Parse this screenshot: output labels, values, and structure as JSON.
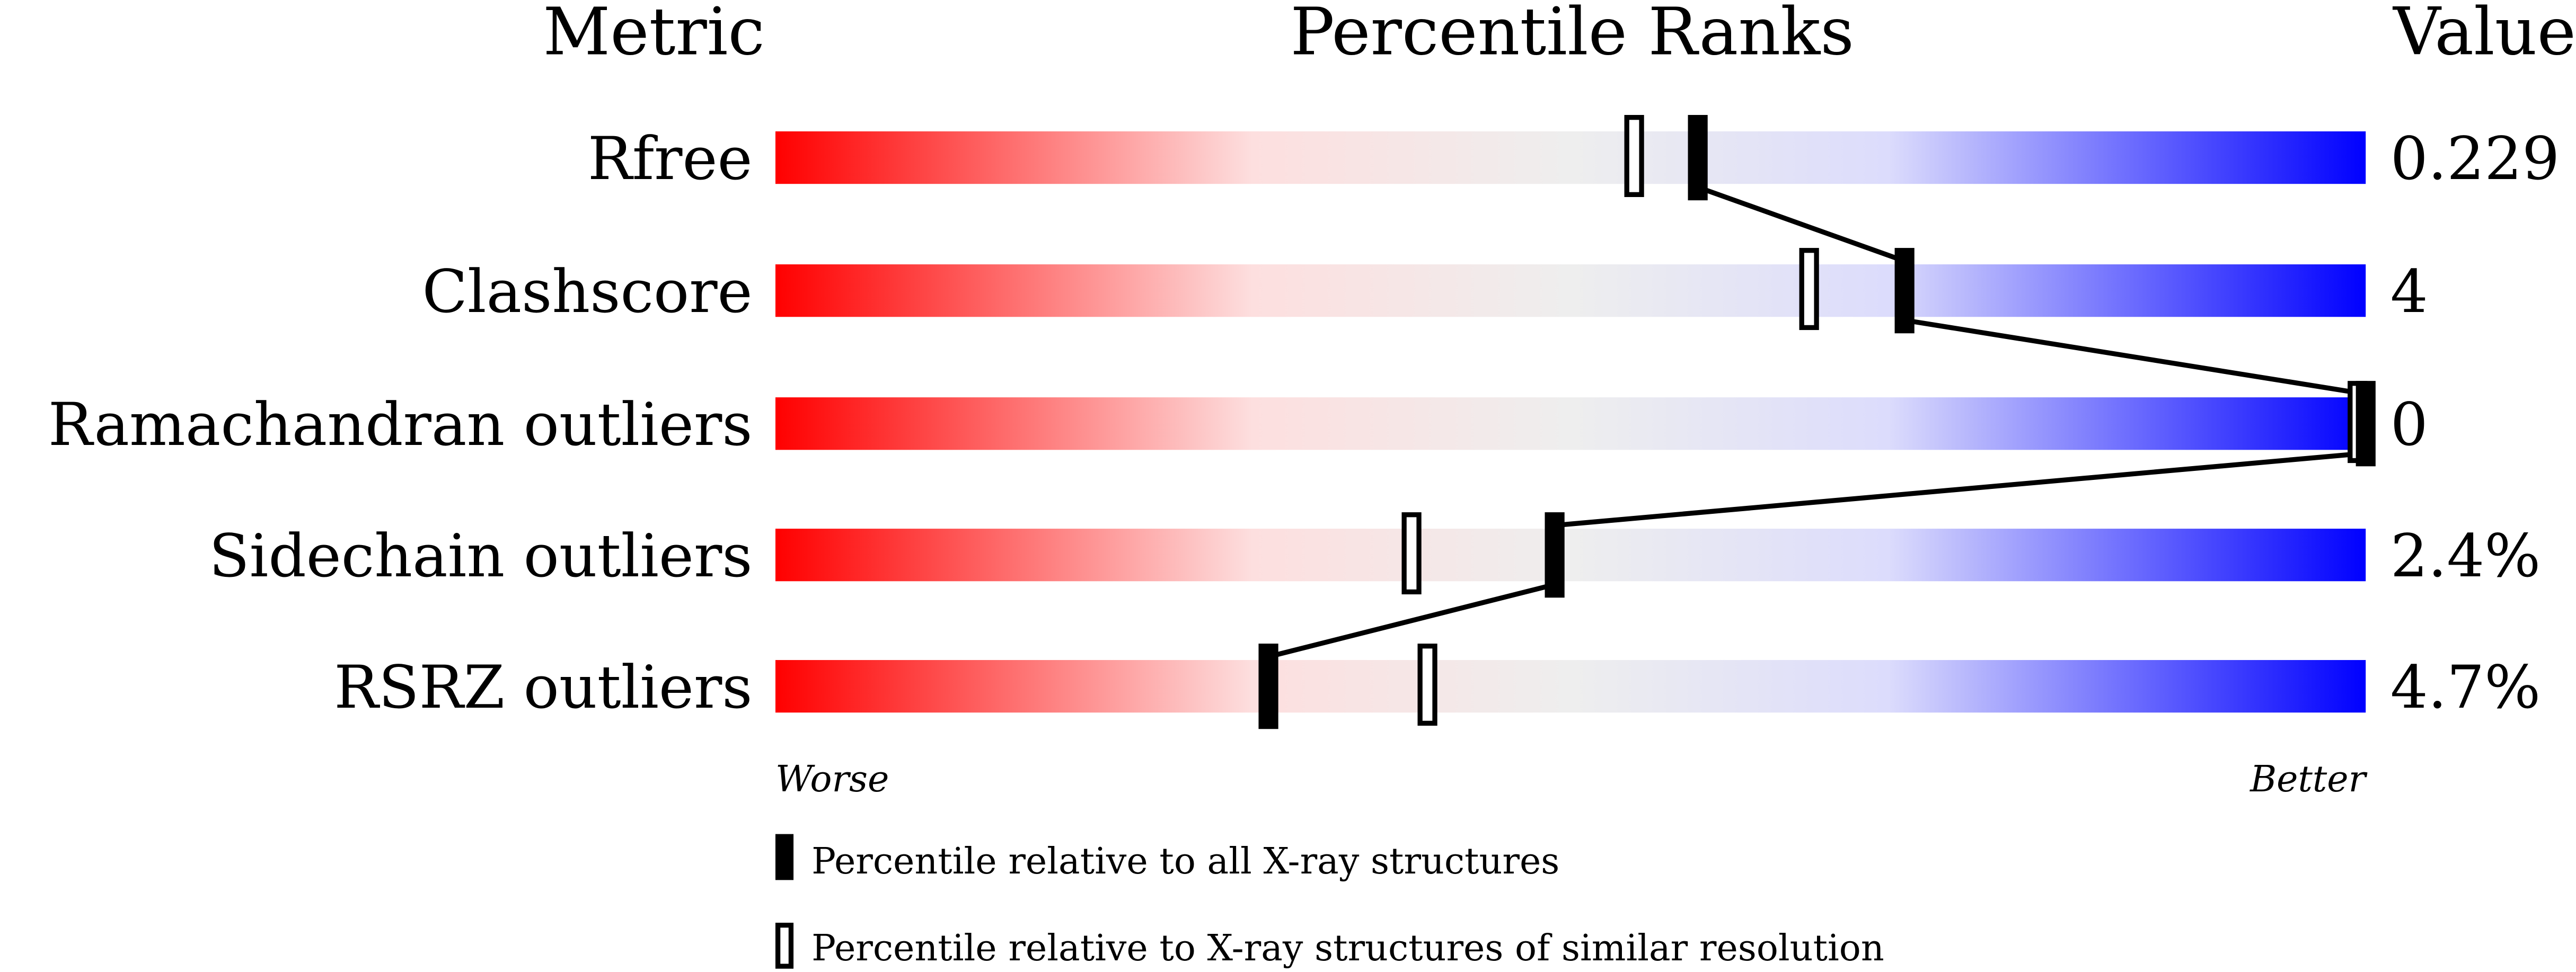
{
  "chart_data": {
    "type": "table",
    "headers": {
      "metric": "Metric",
      "ranks": "Percentile Ranks",
      "value": "Value"
    },
    "axis": {
      "min_label": "Worse",
      "max_label": "Better",
      "range": [
        0,
        100
      ]
    },
    "gradient_colors": {
      "worse": "#ff0000",
      "middle": "#eeeeee",
      "better": "#0000ff"
    },
    "rows": [
      {
        "metric": "Rfree",
        "value": "0.229",
        "percentile_all": 58,
        "percentile_similar": 54
      },
      {
        "metric": "Clashscore",
        "value": "4",
        "percentile_all": 71,
        "percentile_similar": 65
      },
      {
        "metric": "Ramachandran outliers",
        "value": "0",
        "percentile_all": 100,
        "percentile_similar": 100
      },
      {
        "metric": "Sidechain outliers",
        "value": "2.4%",
        "percentile_all": 49,
        "percentile_similar": 40
      },
      {
        "metric": "RSRZ outliers",
        "value": "4.7%",
        "percentile_all": 31,
        "percentile_similar": 41
      }
    ],
    "legend": [
      {
        "marker": "filled",
        "label": "Percentile relative to all X-ray structures"
      },
      {
        "marker": "open",
        "label": "Percentile relative to X-ray structures of similar resolution"
      }
    ]
  }
}
